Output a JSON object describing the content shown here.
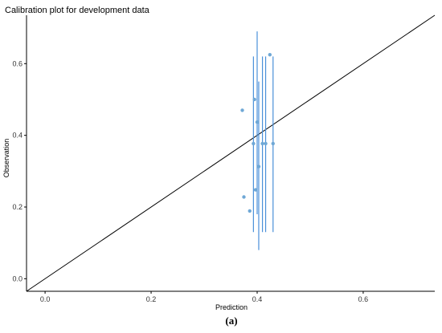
{
  "chart_data": {
    "type": "scatter",
    "title": "Calibration plot for development data",
    "xlabel": "Prediction",
    "ylabel": "Observation",
    "xlim": [
      -0.035,
      0.735
    ],
    "ylim": [
      -0.035,
      0.735
    ],
    "xticks": [
      0.0,
      0.2,
      0.4,
      0.6
    ],
    "yticks": [
      0.0,
      0.2,
      0.4,
      0.6
    ],
    "tick_labels": {
      "x": [
        "0.0",
        "0.2",
        "0.4",
        "0.6"
      ],
      "y": [
        "0.0",
        "0.2",
        "0.4",
        "0.6"
      ]
    },
    "grid": false,
    "reference_line": {
      "from": [
        -0.035,
        -0.035
      ],
      "to": [
        0.735,
        0.735
      ],
      "color": "#000000"
    },
    "point_color": "#6fa8d6",
    "errorbar_color": "#4a90d9",
    "points": [
      {
        "x": 0.372,
        "y": 0.47,
        "lo": null,
        "hi": null
      },
      {
        "x": 0.375,
        "y": 0.228,
        "lo": null,
        "hi": null
      },
      {
        "x": 0.386,
        "y": 0.189,
        "lo": null,
        "hi": null
      },
      {
        "x": 0.393,
        "y": 0.377,
        "lo": 0.13,
        "hi": 0.62
      },
      {
        "x": 0.395,
        "y": 0.5,
        "lo": null,
        "hi": null
      },
      {
        "x": 0.397,
        "y": 0.248,
        "lo": null,
        "hi": null
      },
      {
        "x": 0.4,
        "y": 0.437,
        "lo": 0.18,
        "hi": 0.69
      },
      {
        "x": 0.403,
        "y": 0.313,
        "lo": 0.08,
        "hi": 0.55
      },
      {
        "x": 0.41,
        "y": 0.377,
        "lo": 0.13,
        "hi": 0.62
      },
      {
        "x": 0.416,
        "y": 0.377,
        "lo": 0.13,
        "hi": 0.62
      },
      {
        "x": 0.424,
        "y": 0.625,
        "lo": null,
        "hi": null
      },
      {
        "x": 0.43,
        "y": 0.377,
        "lo": 0.13,
        "hi": 0.62
      }
    ]
  },
  "caption": "(a)"
}
